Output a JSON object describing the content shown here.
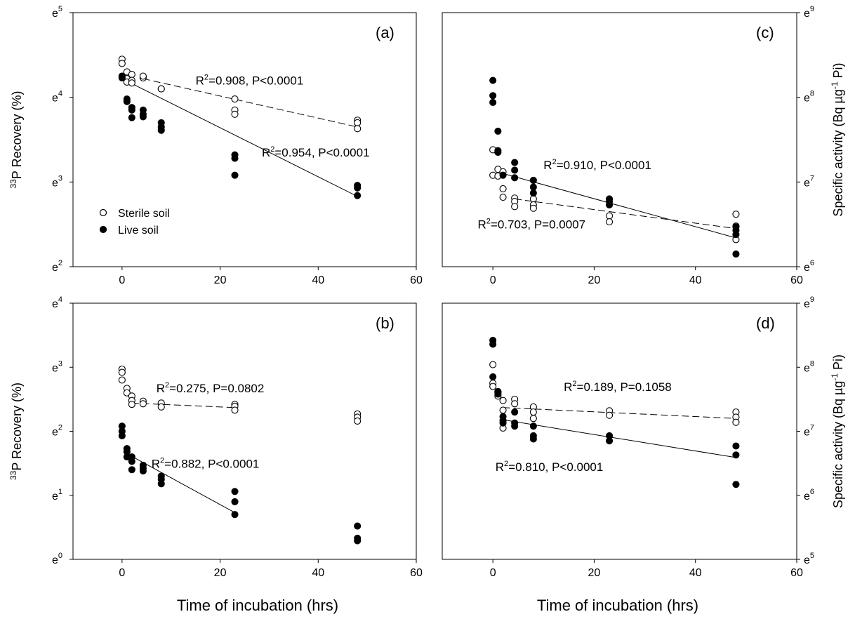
{
  "figure": {
    "xlabel": "Time of incubation (hrs)",
    "xlabel_right": "Time of incubation (hrs)"
  },
  "legend": {
    "sterile": "Sterile soil",
    "live": "Live soil"
  },
  "chart_data": [
    {
      "id": "a",
      "type": "scatter",
      "panel_label": "(a)",
      "ylabel": "33P Recovery (%)",
      "ylabel_sup": "33",
      "ylabel_main": "P Recovery (%)",
      "xlim": [
        -10,
        60
      ],
      "xticks": [
        "0",
        "20",
        "40",
        "60"
      ],
      "ylim": [
        2,
        5
      ],
      "yticks": [
        {
          "v": 2,
          "base": "e",
          "exp": "2"
        },
        {
          "v": 3,
          "base": "e",
          "exp": "3"
        },
        {
          "v": 4,
          "base": "e",
          "exp": "4"
        },
        {
          "v": 5,
          "base": "e",
          "exp": "5"
        }
      ],
      "y_axis_side": "left",
      "series": [
        {
          "name": "Sterile soil",
          "marker": "open",
          "x": [
            0,
            0,
            0,
            1,
            1,
            1,
            2,
            2,
            2,
            4.3,
            4.3,
            8,
            8,
            23,
            23,
            23,
            48,
            48,
            48
          ],
          "y": [
            4.45,
            4.4,
            4.25,
            4.3,
            4.22,
            4.18,
            4.27,
            4.2,
            4.17,
            4.23,
            4.25,
            4.1,
            4.1,
            3.98,
            3.85,
            3.8,
            3.73,
            3.7,
            3.63
          ]
        },
        {
          "name": "Live soil",
          "marker": "filled",
          "x": [
            0,
            0,
            1,
            1,
            2,
            2,
            2,
            4.3,
            4.3,
            4.3,
            8,
            8,
            8,
            23,
            23,
            23,
            48,
            48,
            48
          ],
          "y": [
            4.25,
            4.23,
            3.98,
            3.95,
            3.88,
            3.85,
            3.76,
            3.85,
            3.8,
            3.77,
            3.7,
            3.65,
            3.61,
            3.32,
            3.28,
            3.08,
            2.96,
            2.93,
            2.84
          ]
        }
      ],
      "fits": [
        {
          "series": "Sterile soil",
          "style": "dashed",
          "x": [
            4.3,
            48
          ],
          "y": [
            4.22,
            3.65
          ]
        },
        {
          "series": "Live soil",
          "style": "solid",
          "x": [
            0,
            48
          ],
          "y": [
            4.22,
            2.83
          ]
        }
      ],
      "annotations": [
        {
          "id": "sterile",
          "pre": "R",
          "sup": "2",
          "post": "=0.908, P<0.0001",
          "x": 15,
          "y": 4.15
        },
        {
          "id": "live",
          "pre": "R",
          "sup": "2",
          "post": "=0.954, P<0.0001",
          "x": 28.5,
          "y": 3.3
        }
      ]
    },
    {
      "id": "b",
      "type": "scatter",
      "panel_label": "(b)",
      "ylabel": "33P Recovery (%)",
      "ylabel_sup": "33",
      "ylabel_main": "P Recovery (%)",
      "xlim": [
        -10,
        60
      ],
      "xticks": [
        "0",
        "20",
        "40",
        "60"
      ],
      "ylim": [
        0,
        4
      ],
      "yticks": [
        {
          "v": 0,
          "base": "e",
          "exp": "0"
        },
        {
          "v": 1,
          "base": "e",
          "exp": "1"
        },
        {
          "v": 2,
          "base": "e",
          "exp": "2"
        },
        {
          "v": 3,
          "base": "e",
          "exp": "3"
        },
        {
          "v": 4,
          "base": "e",
          "exp": "4"
        }
      ],
      "y_axis_side": "left",
      "series": [
        {
          "name": "Sterile soil",
          "marker": "open",
          "x": [
            0,
            0,
            0,
            1,
            1,
            2,
            2,
            2,
            4.3,
            4.3,
            8,
            8,
            23,
            23,
            23,
            48,
            48,
            48
          ],
          "y": [
            2.97,
            2.92,
            2.8,
            2.67,
            2.6,
            2.55,
            2.48,
            2.42,
            2.47,
            2.43,
            2.44,
            2.38,
            2.42,
            2.39,
            2.33,
            2.27,
            2.22,
            2.16
          ]
        },
        {
          "name": "Live soil",
          "marker": "filled",
          "x": [
            0,
            0,
            0,
            1,
            1,
            1,
            2,
            2,
            2,
            4.3,
            4.3,
            4.3,
            8,
            8,
            8,
            23,
            23,
            23,
            48,
            48,
            48
          ],
          "y": [
            2.08,
            2.0,
            1.93,
            1.73,
            1.68,
            1.6,
            1.6,
            1.53,
            1.4,
            1.47,
            1.42,
            1.38,
            1.3,
            1.25,
            1.18,
            1.06,
            0.9,
            0.7,
            0.52,
            0.33,
            0.29
          ]
        }
      ],
      "fits": [
        {
          "series": "Sterile soil",
          "style": "dashed",
          "x": [
            2,
            23
          ],
          "y": [
            2.44,
            2.37
          ]
        },
        {
          "series": "Live soil",
          "style": "solid",
          "x": [
            1,
            23
          ],
          "y": [
            1.65,
            0.73
          ]
        }
      ],
      "annotations": [
        {
          "id": "sterile",
          "pre": "R",
          "sup": "2",
          "post": "=0.275, P=0.0802",
          "x": 7,
          "y": 2.61
        },
        {
          "id": "live",
          "pre": "R",
          "sup": "2",
          "post": "=0.882, P<0.0001",
          "x": 6,
          "y": 1.43
        }
      ]
    },
    {
      "id": "c",
      "type": "scatter",
      "panel_label": "(c)",
      "ylabel": "Specific activity (Bq µg-1 Pi)",
      "ylabel_pre": "Specific activity (Bq µg",
      "ylabel_sup": "-1",
      "ylabel_post": " Pi)",
      "xlim": [
        -10,
        60
      ],
      "xticks": [
        "0",
        "20",
        "40",
        "60"
      ],
      "ylim": [
        6,
        9
      ],
      "yticks": [
        {
          "v": 6,
          "base": "e",
          "exp": "6"
        },
        {
          "v": 7,
          "base": "e",
          "exp": "7"
        },
        {
          "v": 8,
          "base": "e",
          "exp": "8"
        },
        {
          "v": 9,
          "base": "e",
          "exp": "9"
        }
      ],
      "y_axis_side": "right",
      "series": [
        {
          "name": "Sterile soil",
          "marker": "open",
          "x": [
            0,
            0,
            1,
            1,
            2,
            2,
            2,
            4.3,
            4.3,
            4.3,
            8,
            8,
            8,
            23,
            23,
            48,
            48,
            48
          ],
          "y": [
            7.38,
            7.08,
            7.15,
            7.07,
            7.12,
            6.92,
            6.82,
            6.81,
            6.77,
            6.71,
            6.8,
            6.73,
            6.69,
            6.6,
            6.53,
            6.62,
            6.48,
            6.32
          ]
        },
        {
          "name": "Live soil",
          "marker": "filled",
          "x": [
            0,
            0,
            0,
            1,
            1,
            1,
            2,
            4.3,
            4.3,
            4.3,
            8,
            8,
            8,
            23,
            23,
            23,
            48,
            48,
            48,
            48
          ],
          "y": [
            8.2,
            8.02,
            7.94,
            7.6,
            7.37,
            7.35,
            7.08,
            7.23,
            7.14,
            7.05,
            7.02,
            6.94,
            6.87,
            6.8,
            6.77,
            6.73,
            6.47,
            6.43,
            6.38,
            6.15
          ]
        }
      ],
      "fits": [
        {
          "series": "Sterile soil",
          "style": "dashed",
          "x": [
            4.3,
            48
          ],
          "y": [
            6.8,
            6.45
          ]
        },
        {
          "series": "Live soil",
          "style": "solid",
          "x": [
            2,
            48
          ],
          "y": [
            7.1,
            6.34
          ]
        }
      ],
      "annotations": [
        {
          "id": "live",
          "pre": "R",
          "sup": "2",
          "post": "=0.910, P<0.0001",
          "x": 10,
          "y": 7.15
        },
        {
          "id": "sterile",
          "pre": "R",
          "sup": "2",
          "post": "=0.703, P=0.0007",
          "x": -3,
          "y": 6.45
        }
      ]
    },
    {
      "id": "d",
      "type": "scatter",
      "panel_label": "(d)",
      "ylabel": "Specific activity (Bq µg-1 Pi)",
      "ylabel_pre": "Specific activity (Bq µg",
      "ylabel_sup": "-1",
      "ylabel_post": " Pi)",
      "xlim": [
        -10,
        60
      ],
      "xticks": [
        "0",
        "20",
        "40",
        "60"
      ],
      "ylim": [
        5,
        9
      ],
      "yticks": [
        {
          "v": 5,
          "base": "e",
          "exp": "5"
        },
        {
          "v": 6,
          "base": "e",
          "exp": "6"
        },
        {
          "v": 7,
          "base": "e",
          "exp": "7"
        },
        {
          "v": 8,
          "base": "e",
          "exp": "8"
        },
        {
          "v": 9,
          "base": "e",
          "exp": "9"
        }
      ],
      "y_axis_side": "right",
      "series": [
        {
          "name": "Sterile soil",
          "marker": "open",
          "x": [
            0,
            0,
            0,
            1,
            1,
            1,
            2,
            2,
            2,
            4.3,
            4.3,
            8,
            8,
            8,
            23,
            23,
            48,
            48,
            48
          ],
          "y": [
            8.04,
            7.75,
            7.7,
            7.62,
            7.6,
            7.55,
            7.48,
            7.33,
            7.05,
            7.5,
            7.43,
            7.38,
            7.3,
            7.2,
            7.32,
            7.25,
            7.3,
            7.22,
            7.14
          ]
        },
        {
          "name": "Live soil",
          "marker": "filled",
          "x": [
            0,
            0,
            0,
            1,
            1,
            2,
            2,
            2,
            4.3,
            4.3,
            4.3,
            8,
            8,
            8,
            23,
            23,
            48,
            48,
            48
          ],
          "y": [
            8.42,
            8.36,
            7.85,
            7.62,
            7.58,
            7.23,
            7.17,
            7.13,
            7.3,
            7.13,
            7.08,
            7.08,
            6.93,
            6.88,
            6.93,
            6.85,
            6.77,
            6.63,
            6.17
          ]
        }
      ],
      "fits": [
        {
          "series": "Sterile soil",
          "style": "dashed",
          "x": [
            2,
            48
          ],
          "y": [
            7.37,
            7.2
          ]
        },
        {
          "series": "Live soil",
          "style": "solid",
          "x": [
            2,
            48
          ],
          "y": [
            7.18,
            6.59
          ]
        }
      ],
      "annotations": [
        {
          "id": "sterile",
          "pre": "R",
          "sup": "2",
          "post": "=0.189, P=0.1058",
          "x": 14,
          "y": 7.63
        },
        {
          "id": "live",
          "pre": "R",
          "sup": "2",
          "post": "=0.810, P<0.0001",
          "x": 0.5,
          "y": 6.38
        }
      ]
    }
  ]
}
